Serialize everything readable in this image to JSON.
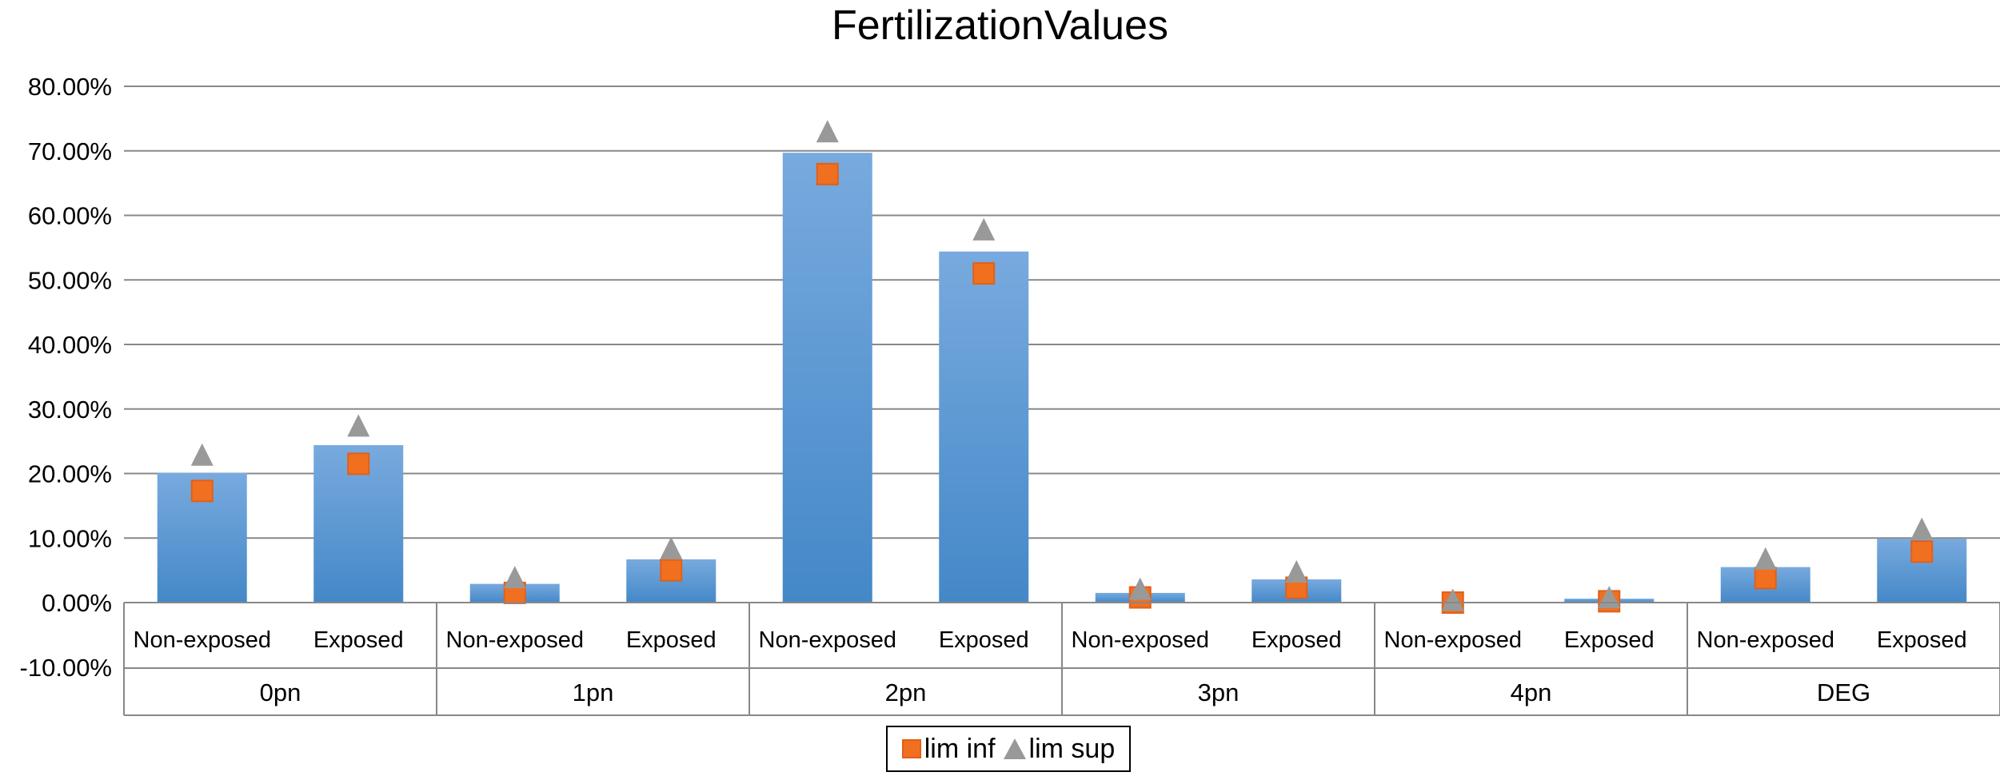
{
  "chart_data": {
    "type": "bar",
    "title": "FertilizationValues",
    "groups": [
      "0pn",
      "1pn",
      "2pn",
      "3pn",
      "4pn",
      "DEG"
    ],
    "subcategories": [
      "Non-exposed",
      "Exposed"
    ],
    "categories": [
      "0pn Non-exposed",
      "0pn Exposed",
      "1pn Non-exposed",
      "1pn Exposed",
      "2pn Non-exposed",
      "2pn Exposed",
      "3pn Non-exposed",
      "3pn Exposed",
      "4pn Non-exposed",
      "4pn Exposed",
      "DEG Non-exposed",
      "DEG Exposed"
    ],
    "values": [
      20.1,
      24.4,
      2.9,
      6.7,
      69.7,
      54.4,
      1.5,
      3.6,
      0,
      0.6,
      5.5,
      9.9
    ],
    "series": [
      {
        "name": "lim inf",
        "marker": "square",
        "color": "#f07020",
        "values": [
          17.3,
          21.5,
          1.5,
          5.0,
          66.4,
          51.0,
          0.8,
          2.3,
          0,
          0.2,
          3.8,
          7.9
        ]
      },
      {
        "name": "lim sup",
        "marker": "triangle",
        "color": "#999999",
        "values": [
          22.7,
          27.2,
          3.7,
          8.2,
          72.8,
          57.6,
          1.9,
          4.6,
          0.2,
          0.6,
          6.6,
          11.2
        ]
      }
    ],
    "bar_color": "#4a8fd0",
    "ylim": [
      -10,
      80
    ],
    "yticks": [
      "-10.00%",
      "0.00%",
      "10.00%",
      "20.00%",
      "30.00%",
      "40.00%",
      "50.00%",
      "60.00%",
      "70.00%",
      "80.00%"
    ],
    "ytick_values": [
      -10,
      0,
      10,
      20,
      30,
      40,
      50,
      60,
      70,
      80
    ],
    "grid": true,
    "legend_position": "bottom"
  }
}
